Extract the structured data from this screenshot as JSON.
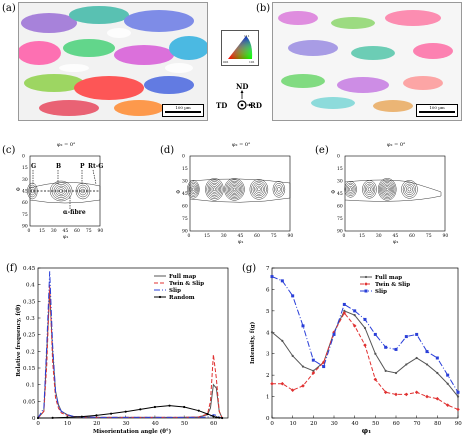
{
  "panels": {
    "a": {
      "label": "(a)",
      "scale": "100 µm"
    },
    "b": {
      "label": "(b)",
      "scale": "100 µm"
    },
    "c": {
      "label": "(c)",
      "phi2": "φ₂ = 0°",
      "annotations": [
        "G",
        "B",
        "P",
        "Rt-G",
        "α-fibre"
      ]
    },
    "d": {
      "label": "(d)",
      "phi2": "φ₂ = 0°"
    },
    "e": {
      "label": "(e)",
      "phi2": "φ₂ = 0°"
    },
    "f": {
      "label": "(f)"
    },
    "g": {
      "label": "(g)"
    }
  },
  "axes_triad": {
    "nd": "ND",
    "td": "TD",
    "rd": "RD"
  },
  "ipf_key": {
    "top": "111",
    "left": "001",
    "right": "101"
  },
  "odf_axes": {
    "xlabel": "φ₁",
    "ylabel": "Φ",
    "xticks": [
      "0",
      "15",
      "30",
      "45",
      "60",
      "75",
      "90"
    ],
    "yticks": [
      "0",
      "15",
      "30",
      "45",
      "60",
      "75",
      "90"
    ]
  },
  "chart_data": [
    {
      "type": "line",
      "title": "",
      "xlabel": "Misorientation angle (θ°)",
      "ylabel": "Relative frequency, f(θ)",
      "xlim": [
        0,
        65
      ],
      "ylim": [
        0,
        0.45
      ],
      "xticks": [
        "0",
        "10",
        "20",
        "30",
        "40",
        "50",
        "60"
      ],
      "yticks": [
        "0",
        "0.05",
        "0.1",
        "0.15",
        "0.2",
        "0.25",
        "0.3",
        "0.35",
        "0.4",
        "0.45"
      ],
      "legend": "top-right",
      "series": [
        {
          "name": "Full map",
          "color": "#555555",
          "dash": "",
          "x": [
            0,
            2,
            3,
            4,
            5,
            6,
            7,
            8,
            10,
            12,
            15,
            20,
            30,
            40,
            50,
            55,
            58,
            59,
            60,
            61,
            62,
            63
          ],
          "y": [
            0,
            0.02,
            0.2,
            0.38,
            0.2,
            0.08,
            0.04,
            0.02,
            0.01,
            0.005,
            0.003,
            0.002,
            0.002,
            0.002,
            0.002,
            0.003,
            0.01,
            0.03,
            0.1,
            0.09,
            0.02,
            0
          ]
        },
        {
          "name": "Twin & Slip",
          "color": "#e03030",
          "dash": "4,2",
          "x": [
            0,
            2,
            3,
            4,
            5,
            6,
            7,
            8,
            10,
            12,
            15,
            20,
            30,
            40,
            50,
            55,
            58,
            59,
            60,
            61,
            62,
            63
          ],
          "y": [
            0,
            0.02,
            0.16,
            0.4,
            0.17,
            0.06,
            0.03,
            0.015,
            0.008,
            0.004,
            0.003,
            0.002,
            0.002,
            0.002,
            0.002,
            0.003,
            0.012,
            0.05,
            0.19,
            0.12,
            0.02,
            0
          ]
        },
        {
          "name": "Slip",
          "color": "#2a3fd8",
          "dash": "6,2,1,2",
          "x": [
            0,
            2,
            3,
            4,
            5,
            6,
            7,
            8,
            10,
            12,
            15,
            20,
            30,
            40,
            50,
            55,
            58,
            59,
            60,
            61,
            62,
            63
          ],
          "y": [
            0,
            0.03,
            0.22,
            0.44,
            0.22,
            0.08,
            0.035,
            0.02,
            0.01,
            0.005,
            0.003,
            0.002,
            0.002,
            0.002,
            0.002,
            0.002,
            0.003,
            0.005,
            0.01,
            0.008,
            0.002,
            0
          ]
        },
        {
          "name": "Random",
          "color": "#000000",
          "dash": "",
          "marker": "dot",
          "x": [
            0,
            5,
            10,
            15,
            20,
            25,
            30,
            35,
            40,
            45,
            50,
            55,
            58,
            60,
            61,
            62,
            63
          ],
          "y": [
            0,
            0.0005,
            0.002,
            0.004,
            0.008,
            0.013,
            0.019,
            0.026,
            0.033,
            0.037,
            0.033,
            0.022,
            0.012,
            0.005,
            0.002,
            0.001,
            0
          ]
        }
      ]
    },
    {
      "type": "line",
      "title": "",
      "xlabel": "φ₁",
      "ylabel": "Intensity, f(g)",
      "xlim": [
        0,
        90
      ],
      "ylim": [
        0,
        7
      ],
      "xticks": [
        "0",
        "10",
        "20",
        "30",
        "40",
        "50",
        "60",
        "70",
        "80",
        "90"
      ],
      "yticks": [
        "0",
        "1",
        "2",
        "3",
        "4",
        "5",
        "6",
        "7"
      ],
      "legend": "top-right",
      "series": [
        {
          "name": "Full map",
          "color": "#555555",
          "dash": "",
          "marker": "dot",
          "x": [
            0,
            5,
            10,
            15,
            20,
            25,
            30,
            35,
            40,
            45,
            50,
            55,
            60,
            65,
            70,
            75,
            80,
            85,
            90
          ],
          "y": [
            4.0,
            3.6,
            2.9,
            2.4,
            2.2,
            2.6,
            4.0,
            5.0,
            4.8,
            4.2,
            3.0,
            2.2,
            2.1,
            2.5,
            2.8,
            2.5,
            2.1,
            1.6,
            1.0
          ]
        },
        {
          "name": "Twin & Slip",
          "color": "#e03030",
          "dash": "4,2",
          "marker": "diamond",
          "x": [
            0,
            5,
            10,
            15,
            20,
            25,
            30,
            35,
            40,
            45,
            50,
            55,
            60,
            65,
            70,
            75,
            80,
            85,
            90
          ],
          "y": [
            1.6,
            1.6,
            1.3,
            1.5,
            2.1,
            2.6,
            4.0,
            4.9,
            4.3,
            3.4,
            1.8,
            1.2,
            1.1,
            1.1,
            1.2,
            1.0,
            0.9,
            0.6,
            0.4
          ]
        },
        {
          "name": "Slip",
          "color": "#2a3fd8",
          "dash": "6,2,1,2",
          "marker": "square",
          "x": [
            0,
            5,
            10,
            15,
            20,
            25,
            30,
            35,
            40,
            45,
            50,
            55,
            60,
            65,
            70,
            75,
            80,
            85,
            90
          ],
          "y": [
            6.6,
            6.4,
            5.7,
            4.3,
            2.7,
            2.4,
            3.9,
            5.3,
            5.0,
            4.6,
            3.9,
            3.3,
            3.2,
            3.8,
            3.9,
            3.1,
            2.8,
            2.0,
            1.2
          ]
        }
      ]
    }
  ]
}
